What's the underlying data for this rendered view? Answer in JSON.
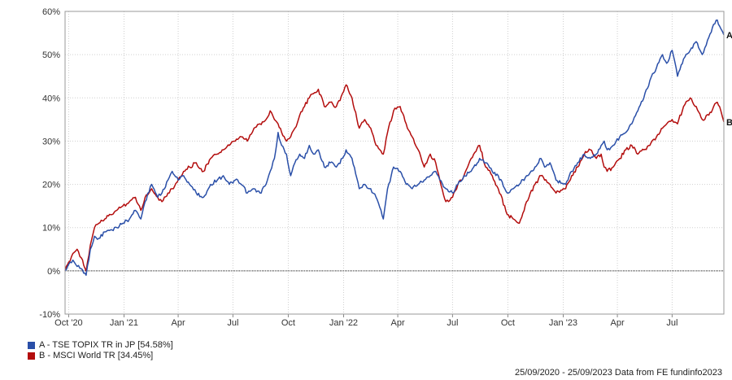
{
  "chart_data": {
    "type": "line",
    "ylim": [
      -10,
      60
    ],
    "y_ticks": [
      "-10%",
      "0%",
      "10%",
      "20%",
      "30%",
      "40%",
      "50%",
      "60%"
    ],
    "y_tick_values": [
      -10,
      0,
      10,
      20,
      30,
      40,
      50,
      60
    ],
    "x_ticks": [
      "Oct '20",
      "Jan '21",
      "Apr",
      "Jul",
      "Oct",
      "Jan '22",
      "Apr",
      "Jul",
      "Oct",
      "Jan '23",
      "Apr",
      "Jul"
    ],
    "x_tick_dates": [
      "2020-10-01",
      "2021-01-01",
      "2021-04-01",
      "2021-07-01",
      "2021-10-01",
      "2022-01-01",
      "2022-04-01",
      "2022-07-01",
      "2022-10-01",
      "2023-01-01",
      "2023-04-01",
      "2023-07-01"
    ],
    "x_range": [
      "2020-09-25",
      "2023-09-25"
    ],
    "grid": true,
    "colors": {
      "A": "#2a4fa8",
      "B": "#b30d0d"
    },
    "series": [
      {
        "name": "A - TSE TOPIX TR in JP [54.58%]",
        "end_label": "A",
        "color": "#2a4fa8",
        "points": [
          [
            "2020-09-25",
            0
          ],
          [
            "2020-10-01",
            1.5
          ],
          [
            "2020-10-08",
            2.5
          ],
          [
            "2020-10-15",
            1
          ],
          [
            "2020-10-22",
            0.5
          ],
          [
            "2020-10-30",
            -1
          ],
          [
            "2020-11-06",
            5
          ],
          [
            "2020-11-13",
            8
          ],
          [
            "2020-11-20",
            7.5
          ],
          [
            "2020-11-30",
            9
          ],
          [
            "2020-12-10",
            9.5
          ],
          [
            "2020-12-20",
            10
          ],
          [
            "2020-12-30",
            11
          ],
          [
            "2021-01-10",
            12
          ],
          [
            "2021-01-20",
            14
          ],
          [
            "2021-01-29",
            12
          ],
          [
            "2021-02-05",
            16
          ],
          [
            "2021-02-16",
            20
          ],
          [
            "2021-02-26",
            17
          ],
          [
            "2021-03-05",
            18
          ],
          [
            "2021-03-15",
            21
          ],
          [
            "2021-03-22",
            23
          ],
          [
            "2021-04-01",
            21
          ],
          [
            "2021-04-10",
            22
          ],
          [
            "2021-04-20",
            20
          ],
          [
            "2021-05-01",
            18
          ],
          [
            "2021-05-13",
            17
          ],
          [
            "2021-05-25",
            20
          ],
          [
            "2021-06-05",
            21
          ],
          [
            "2021-06-15",
            22
          ],
          [
            "2021-06-25",
            20
          ],
          [
            "2021-07-05",
            21
          ],
          [
            "2021-07-15",
            20
          ],
          [
            "2021-07-25",
            18
          ],
          [
            "2021-08-05",
            19
          ],
          [
            "2021-08-15",
            18
          ],
          [
            "2021-08-25",
            20
          ],
          [
            "2021-09-01",
            23
          ],
          [
            "2021-09-08",
            26
          ],
          [
            "2021-09-14",
            32
          ],
          [
            "2021-09-20",
            29
          ],
          [
            "2021-09-28",
            27
          ],
          [
            "2021-10-05",
            22
          ],
          [
            "2021-10-12",
            25
          ],
          [
            "2021-10-20",
            27
          ],
          [
            "2021-10-28",
            26
          ],
          [
            "2021-11-05",
            29
          ],
          [
            "2021-11-12",
            27
          ],
          [
            "2021-11-20",
            28
          ],
          [
            "2021-11-30",
            24
          ],
          [
            "2021-12-10",
            25
          ],
          [
            "2021-12-20",
            24
          ],
          [
            "2021-12-30",
            26
          ],
          [
            "2022-01-05",
            28
          ],
          [
            "2022-01-15",
            26
          ],
          [
            "2022-01-27",
            19
          ],
          [
            "2022-02-05",
            20
          ],
          [
            "2022-02-15",
            19
          ],
          [
            "2022-02-24",
            17
          ],
          [
            "2022-03-08",
            12
          ],
          [
            "2022-03-15",
            19
          ],
          [
            "2022-03-25",
            24
          ],
          [
            "2022-04-05",
            23
          ],
          [
            "2022-04-15",
            20
          ],
          [
            "2022-04-25",
            19
          ],
          [
            "2022-05-05",
            20
          ],
          [
            "2022-05-15",
            21
          ],
          [
            "2022-05-25",
            22
          ],
          [
            "2022-06-03",
            23
          ],
          [
            "2022-06-10",
            21
          ],
          [
            "2022-06-20",
            19
          ],
          [
            "2022-07-01",
            18
          ],
          [
            "2022-07-10",
            20
          ],
          [
            "2022-07-20",
            22
          ],
          [
            "2022-08-01",
            23
          ],
          [
            "2022-08-15",
            26
          ],
          [
            "2022-08-25",
            25
          ],
          [
            "2022-09-05",
            23
          ],
          [
            "2022-09-15",
            22
          ],
          [
            "2022-09-30",
            18
          ],
          [
            "2022-10-10",
            19
          ],
          [
            "2022-10-20",
            20
          ],
          [
            "2022-11-01",
            22
          ],
          [
            "2022-11-15",
            24
          ],
          [
            "2022-11-25",
            26
          ],
          [
            "2022-12-01",
            24
          ],
          [
            "2022-12-10",
            25
          ],
          [
            "2022-12-20",
            21
          ],
          [
            "2023-01-05",
            20
          ],
          [
            "2023-01-15",
            23
          ],
          [
            "2023-01-25",
            25
          ],
          [
            "2023-02-05",
            27
          ],
          [
            "2023-02-15",
            26
          ],
          [
            "2023-02-25",
            27
          ],
          [
            "2023-03-05",
            29
          ],
          [
            "2023-03-10",
            30
          ],
          [
            "2023-03-15",
            28
          ],
          [
            "2023-03-25",
            29
          ],
          [
            "2023-04-05",
            31
          ],
          [
            "2023-04-15",
            32
          ],
          [
            "2023-04-25",
            34
          ],
          [
            "2023-05-05",
            37
          ],
          [
            "2023-05-15",
            40
          ],
          [
            "2023-05-25",
            44
          ],
          [
            "2023-06-05",
            47
          ],
          [
            "2023-06-15",
            50
          ],
          [
            "2023-06-22",
            48
          ],
          [
            "2023-07-01",
            51
          ],
          [
            "2023-07-10",
            45
          ],
          [
            "2023-07-20",
            49
          ],
          [
            "2023-07-31",
            51
          ],
          [
            "2023-08-10",
            53
          ],
          [
            "2023-08-20",
            50
          ],
          [
            "2023-08-31",
            54
          ],
          [
            "2023-09-08",
            57
          ],
          [
            "2023-09-14",
            58
          ],
          [
            "2023-09-20",
            56
          ],
          [
            "2023-09-25",
            54.58
          ]
        ]
      },
      {
        "name": "B - MSCI World TR [34.45%]",
        "end_label": "B",
        "color": "#b30d0d",
        "points": [
          [
            "2020-09-25",
            0
          ],
          [
            "2020-10-01",
            2
          ],
          [
            "2020-10-08",
            4
          ],
          [
            "2020-10-15",
            5
          ],
          [
            "2020-10-22",
            3
          ],
          [
            "2020-10-30",
            0
          ],
          [
            "2020-11-06",
            6
          ],
          [
            "2020-11-13",
            10
          ],
          [
            "2020-11-20",
            11
          ],
          [
            "2020-11-30",
            12
          ],
          [
            "2020-12-10",
            13
          ],
          [
            "2020-12-20",
            14
          ],
          [
            "2020-12-30",
            15
          ],
          [
            "2021-01-10",
            16
          ],
          [
            "2021-01-20",
            17
          ],
          [
            "2021-01-29",
            14
          ],
          [
            "2021-02-05",
            17
          ],
          [
            "2021-02-16",
            19
          ],
          [
            "2021-02-26",
            17
          ],
          [
            "2021-03-05",
            16
          ],
          [
            "2021-03-15",
            18
          ],
          [
            "2021-03-22",
            19
          ],
          [
            "2021-04-01",
            21
          ],
          [
            "2021-04-10",
            23
          ],
          [
            "2021-04-20",
            24
          ],
          [
            "2021-05-01",
            25
          ],
          [
            "2021-05-13",
            23
          ],
          [
            "2021-05-25",
            26
          ],
          [
            "2021-06-05",
            27
          ],
          [
            "2021-06-15",
            28
          ],
          [
            "2021-06-25",
            29
          ],
          [
            "2021-07-05",
            30
          ],
          [
            "2021-07-15",
            31
          ],
          [
            "2021-07-25",
            30
          ],
          [
            "2021-08-05",
            33
          ],
          [
            "2021-08-15",
            34
          ],
          [
            "2021-08-25",
            35
          ],
          [
            "2021-09-01",
            37
          ],
          [
            "2021-09-08",
            35
          ],
          [
            "2021-09-14",
            34
          ],
          [
            "2021-09-20",
            32
          ],
          [
            "2021-09-28",
            30
          ],
          [
            "2021-10-05",
            31
          ],
          [
            "2021-10-12",
            33
          ],
          [
            "2021-10-20",
            36
          ],
          [
            "2021-10-28",
            38
          ],
          [
            "2021-11-05",
            40
          ],
          [
            "2021-11-12",
            41
          ],
          [
            "2021-11-20",
            42
          ],
          [
            "2021-11-30",
            38
          ],
          [
            "2021-12-10",
            39
          ],
          [
            "2021-12-20",
            38
          ],
          [
            "2021-12-30",
            41
          ],
          [
            "2022-01-05",
            43
          ],
          [
            "2022-01-15",
            40
          ],
          [
            "2022-01-27",
            33
          ],
          [
            "2022-02-05",
            35
          ],
          [
            "2022-02-15",
            33
          ],
          [
            "2022-02-24",
            29
          ],
          [
            "2022-03-08",
            27
          ],
          [
            "2022-03-15",
            32
          ],
          [
            "2022-03-25",
            37
          ],
          [
            "2022-04-05",
            38
          ],
          [
            "2022-04-15",
            34
          ],
          [
            "2022-04-25",
            31
          ],
          [
            "2022-05-05",
            28
          ],
          [
            "2022-05-15",
            24
          ],
          [
            "2022-05-25",
            27
          ],
          [
            "2022-06-03",
            25
          ],
          [
            "2022-06-10",
            21
          ],
          [
            "2022-06-20",
            16
          ],
          [
            "2022-07-01",
            17
          ],
          [
            "2022-07-10",
            20
          ],
          [
            "2022-07-20",
            22
          ],
          [
            "2022-08-01",
            26
          ],
          [
            "2022-08-15",
            29
          ],
          [
            "2022-08-25",
            24
          ],
          [
            "2022-09-05",
            22
          ],
          [
            "2022-09-15",
            19
          ],
          [
            "2022-09-30",
            13
          ],
          [
            "2022-10-10",
            12
          ],
          [
            "2022-10-20",
            11
          ],
          [
            "2022-11-01",
            16
          ],
          [
            "2022-11-15",
            20
          ],
          [
            "2022-11-25",
            22
          ],
          [
            "2022-12-01",
            21
          ],
          [
            "2022-12-10",
            20
          ],
          [
            "2022-12-20",
            18
          ],
          [
            "2023-01-05",
            19
          ],
          [
            "2023-01-15",
            22
          ],
          [
            "2023-01-25",
            24
          ],
          [
            "2023-02-05",
            27
          ],
          [
            "2023-02-15",
            28
          ],
          [
            "2023-02-25",
            26
          ],
          [
            "2023-03-05",
            27
          ],
          [
            "2023-03-10",
            24
          ],
          [
            "2023-03-15",
            23
          ],
          [
            "2023-03-25",
            24
          ],
          [
            "2023-04-05",
            26
          ],
          [
            "2023-04-15",
            28
          ],
          [
            "2023-04-25",
            29
          ],
          [
            "2023-05-05",
            27
          ],
          [
            "2023-05-15",
            28
          ],
          [
            "2023-05-25",
            29
          ],
          [
            "2023-06-05",
            31
          ],
          [
            "2023-06-15",
            33
          ],
          [
            "2023-06-22",
            34
          ],
          [
            "2023-07-01",
            35
          ],
          [
            "2023-07-10",
            34
          ],
          [
            "2023-07-20",
            38
          ],
          [
            "2023-07-31",
            40
          ],
          [
            "2023-08-10",
            38
          ],
          [
            "2023-08-20",
            35
          ],
          [
            "2023-08-31",
            36
          ],
          [
            "2023-09-08",
            38
          ],
          [
            "2023-09-14",
            39
          ],
          [
            "2023-09-20",
            37
          ],
          [
            "2023-09-25",
            34.45
          ]
        ]
      }
    ]
  },
  "footer": {
    "text": "25/09/2020 - 25/09/2023 Data from FE fundinfo2023"
  }
}
